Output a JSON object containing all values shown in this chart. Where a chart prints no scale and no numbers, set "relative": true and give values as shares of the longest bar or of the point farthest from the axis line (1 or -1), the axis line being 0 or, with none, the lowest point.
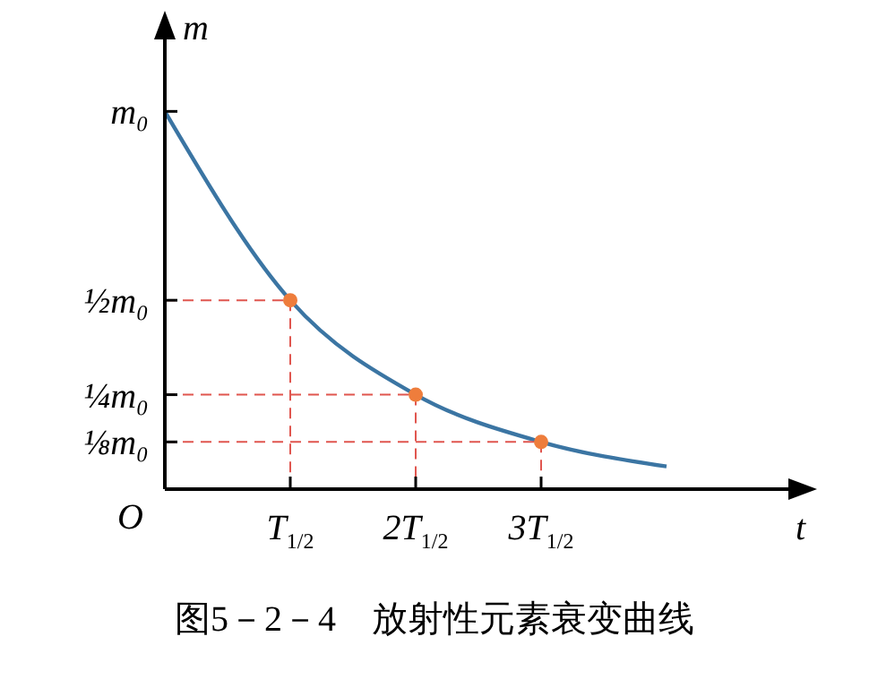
{
  "chart_data": {
    "type": "line",
    "relative": true,
    "xlabel": "t",
    "ylabel": "m",
    "categories": [
      null,
      "T$_{1/2}$",
      "2T$_{1/2}$",
      "3T$_{1/2}$",
      null
    ],
    "grid": false,
    "series": [
      {
        "color": "#3b75a3",
        "marker": "none",
        "values": [
          1,
          0.5,
          0.25,
          0.125,
          0.06
        ]
      },
      {
        "type": "scatter",
        "color": "#ee7d3c",
        "marker": "circle",
        "line_style": "dashed",
        "values": [
          null,
          0.5,
          0.25,
          0.125,
          null
        ]
      }
    ],
    "annotations": [
      "m₀",
      "½m₀",
      "¼m₀",
      "⅛m₀",
      "O",
      "图5－2－4　放射性元素衰变曲线"
    ]
  }
}
